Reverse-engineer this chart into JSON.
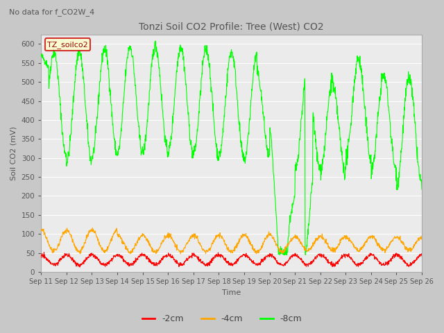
{
  "title": "Tonzi Soil CO2 Profile: Tree (West) CO2",
  "no_data_text": "No data for f_CO2W_4",
  "ylabel": "Soil CO2 (mV)",
  "xlabel": "Time",
  "legend_label": "TZ_soilco2",
  "ylim": [
    0,
    625
  ],
  "yticks": [
    0,
    50,
    100,
    150,
    200,
    250,
    300,
    350,
    400,
    450,
    500,
    550,
    600
  ],
  "xtick_labels": [
    "Sep 11",
    "Sep 12",
    "Sep 13",
    "Sep 14",
    "Sep 15",
    "Sep 16",
    "Sep 17",
    "Sep 18",
    "Sep 19",
    "Sep 20",
    "Sep 21",
    "Sep 22",
    "Sep 23",
    "Sep 24",
    "Sep 25",
    "Sep 26"
  ],
  "series_labels": [
    "-2cm",
    "-4cm",
    "-8cm"
  ],
  "series_colors": [
    "#ff0000",
    "#ffa500",
    "#00ff00"
  ],
  "line_width": 0.8,
  "plot_bg_color": "#ebebeb",
  "legend_box_color": "#ffffcc",
  "legend_text_color": "#990000",
  "title_color": "#555555",
  "no_data_color": "#555555",
  "grid_color": "#ffffff",
  "fig_bg_color": "#c8c8c8"
}
